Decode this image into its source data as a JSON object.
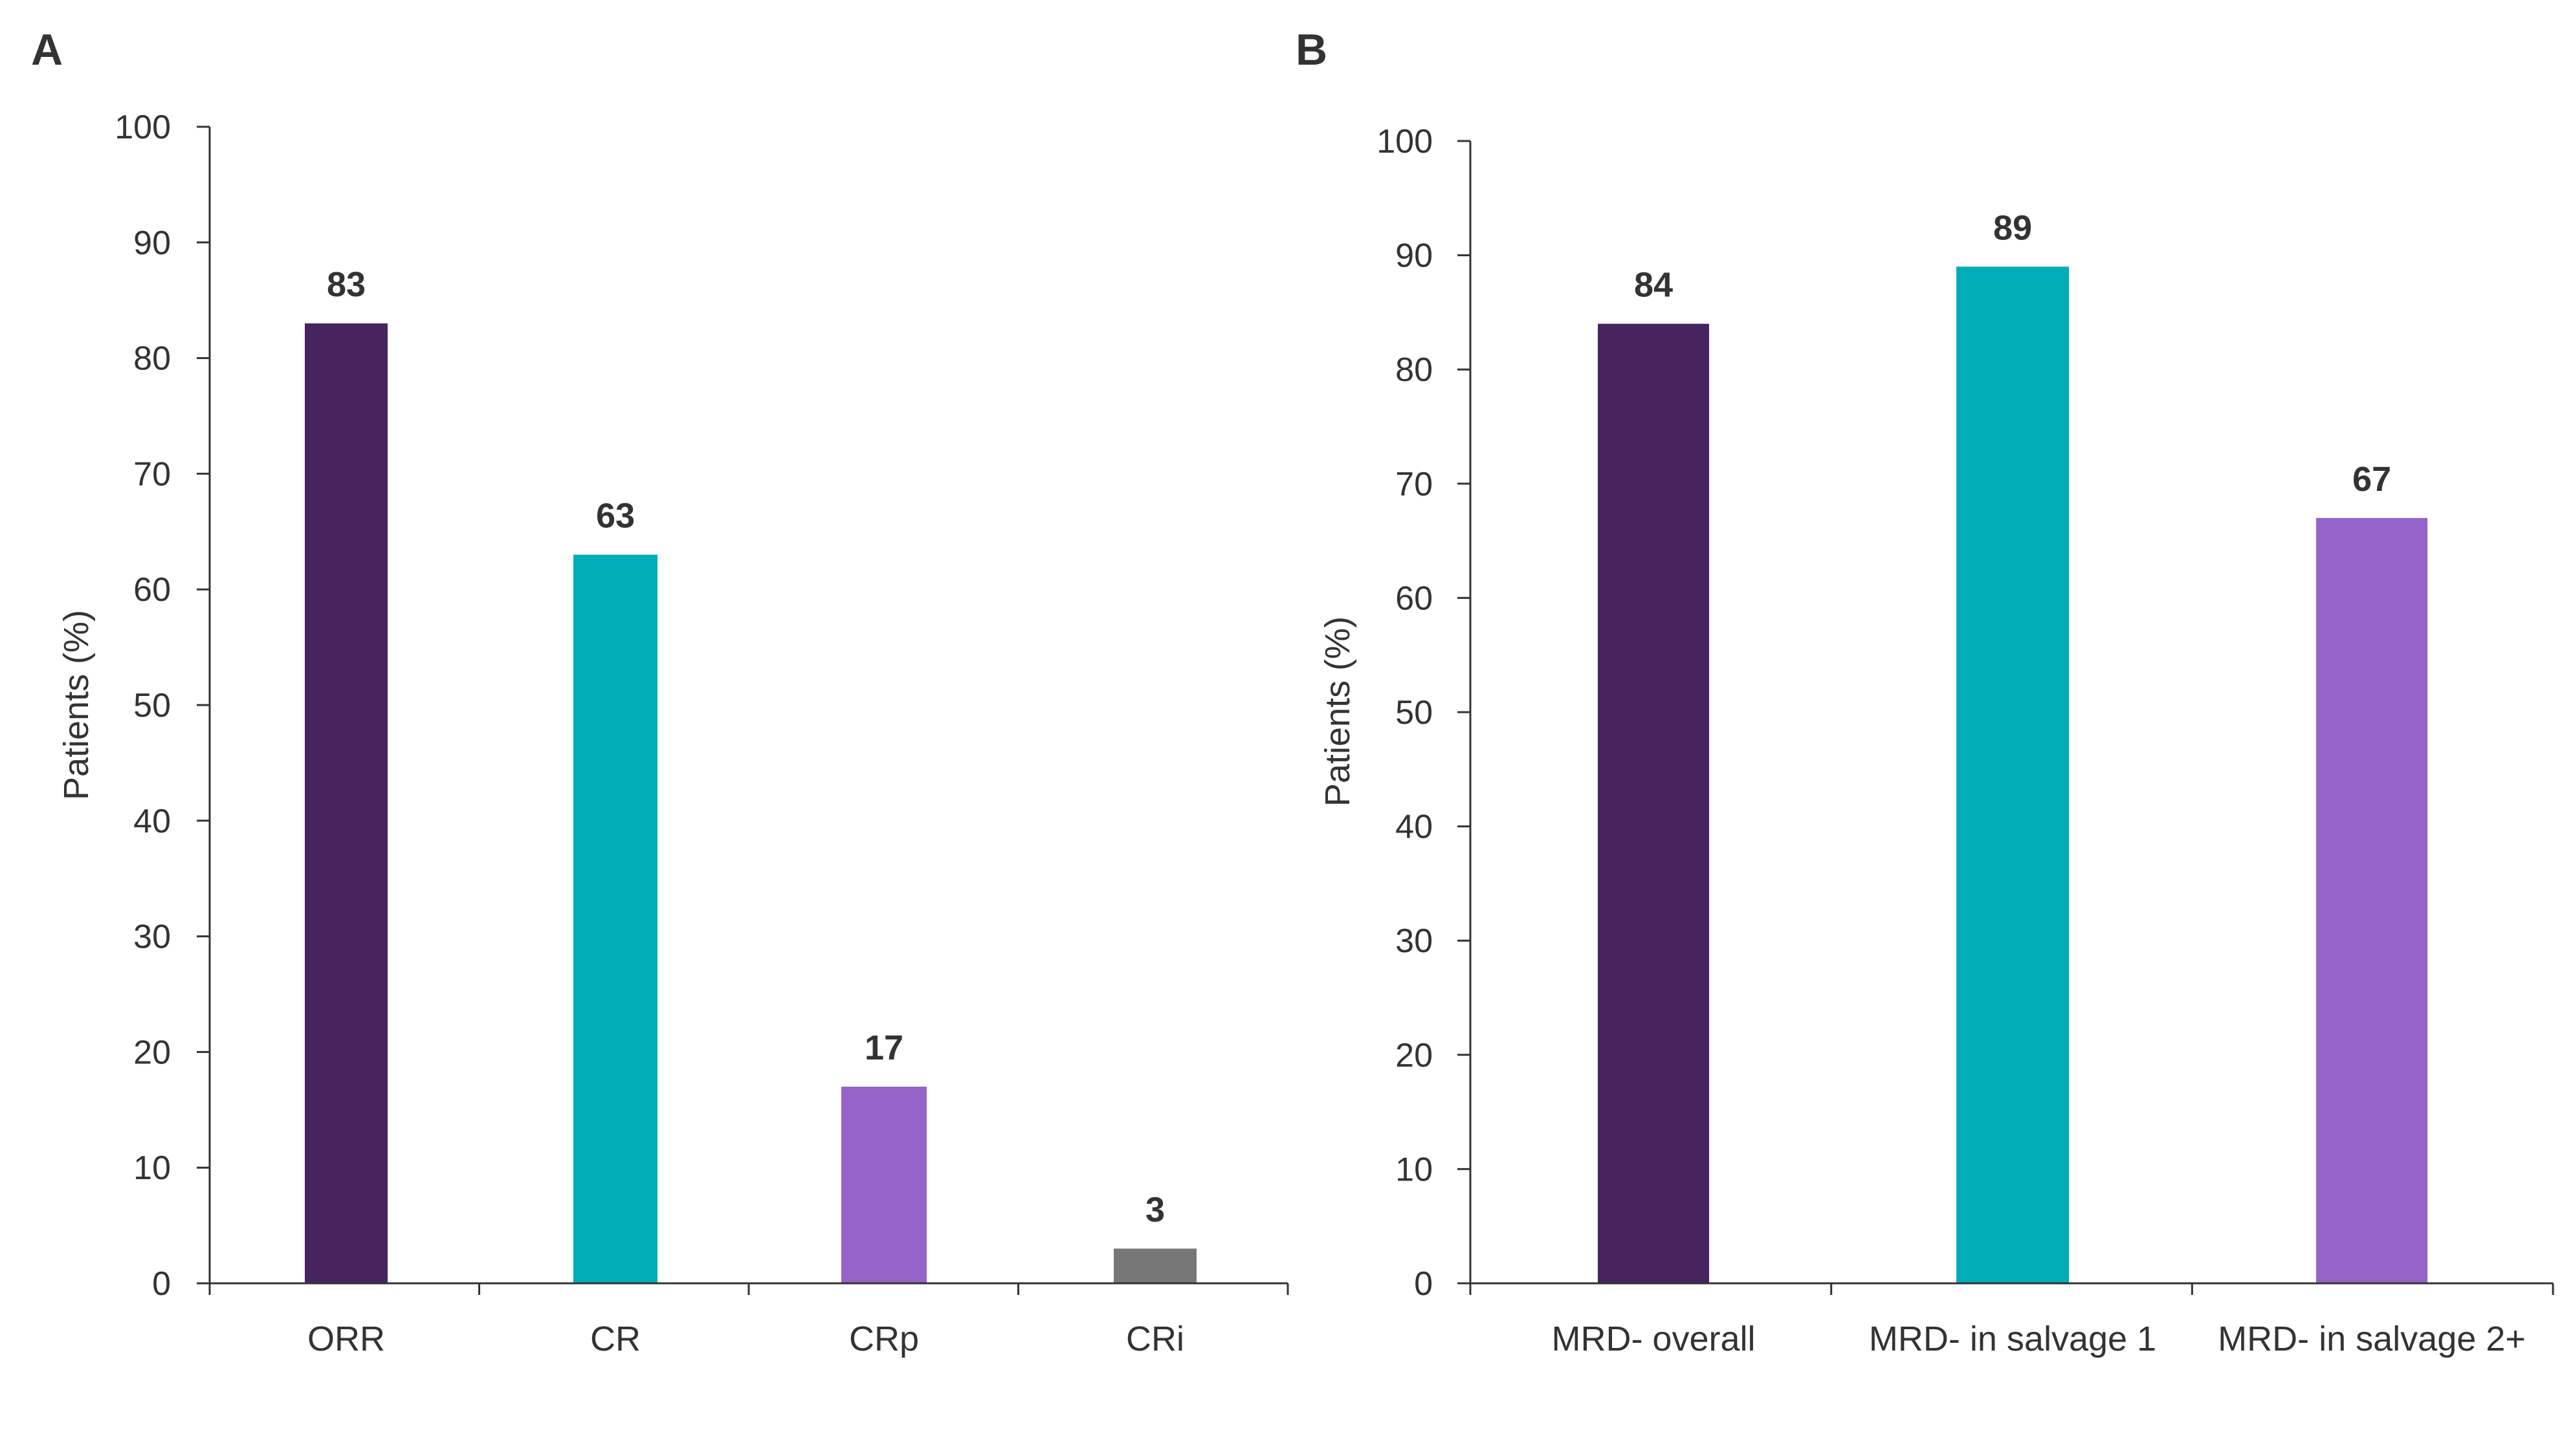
{
  "panels": [
    {
      "letter": "A",
      "chart_data": {
        "type": "bar",
        "categories": [
          "ORR",
          "CR",
          "CRp",
          "CRi"
        ],
        "values": [
          83,
          63,
          17,
          3
        ],
        "data_labels": [
          "83",
          "63",
          "17",
          "3"
        ],
        "colors": [
          "#47245e",
          "#00adb9",
          "#9663c8",
          "#777777"
        ],
        "xlabel": "",
        "ylabel": "Patients (%)",
        "ylim": [
          0,
          100
        ],
        "yticks": [
          0,
          10,
          20,
          30,
          40,
          50,
          60,
          70,
          80,
          90,
          100
        ],
        "grid": false,
        "legend": "none"
      }
    },
    {
      "letter": "B",
      "chart_data": {
        "type": "bar",
        "categories": [
          "MRD- overall",
          "MRD- in salvage 1",
          "MRD- in salvage 2+"
        ],
        "values": [
          84,
          89,
          67
        ],
        "data_labels": [
          "84",
          "89",
          "67"
        ],
        "colors": [
          "#47245e",
          "#00adb9",
          "#9663c8"
        ],
        "xlabel": "",
        "ylabel": "Patients (%)",
        "ylim": [
          0,
          100
        ],
        "yticks": [
          0,
          10,
          20,
          30,
          40,
          50,
          60,
          70,
          80,
          90,
          100
        ],
        "grid": false,
        "legend": "none"
      }
    }
  ],
  "axis_color": "#333333",
  "text_color": "#333333"
}
